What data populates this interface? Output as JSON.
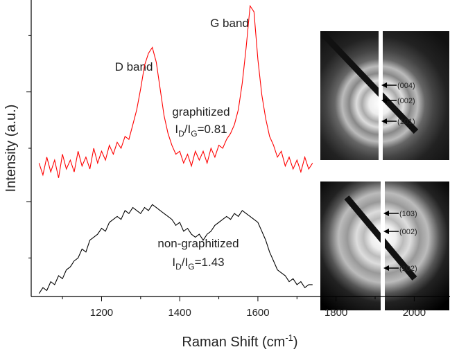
{
  "chart_data": {
    "type": "line",
    "xlabel": [
      "Raman Shift (cm",
      "-1",
      ")"
    ],
    "ylabel": "Intensity (a.u.)",
    "xlim": [
      1020,
      2088
    ],
    "xticks": [
      1200,
      1400,
      1600,
      1800,
      2000
    ],
    "xminor": [
      1100,
      1300,
      1500,
      1700,
      1900
    ],
    "ylim": [
      0,
      10
    ],
    "yticks": [
      3.2,
      6.9
    ],
    "yminor": [
      1.3,
      5.0,
      8.8
    ],
    "ytick_labels": false,
    "x": [
      1040,
      1050,
      1060,
      1070,
      1080,
      1090,
      1100,
      1110,
      1120,
      1130,
      1140,
      1150,
      1160,
      1170,
      1180,
      1190,
      1200,
      1210,
      1220,
      1230,
      1240,
      1250,
      1260,
      1270,
      1280,
      1290,
      1300,
      1310,
      1320,
      1330,
      1340,
      1350,
      1360,
      1370,
      1380,
      1390,
      1400,
      1410,
      1420,
      1430,
      1440,
      1450,
      1460,
      1470,
      1480,
      1490,
      1500,
      1510,
      1520,
      1530,
      1540,
      1550,
      1560,
      1570,
      1580,
      1590,
      1600,
      1610,
      1620,
      1630,
      1640,
      1650,
      1660,
      1670,
      1680,
      1690,
      1700,
      1710,
      1720,
      1730,
      1740
    ],
    "series": [
      {
        "name": "graphitized",
        "color": "#ff0000",
        "values": [
          4.5,
          4.1,
          4.7,
          4.2,
          4.6,
          4.0,
          4.8,
          4.3,
          4.6,
          4.2,
          4.9,
          4.4,
          4.7,
          4.3,
          5.0,
          4.5,
          4.9,
          4.6,
          5.1,
          4.8,
          5.2,
          5.0,
          5.4,
          5.3,
          5.8,
          6.3,
          7.0,
          7.8,
          8.2,
          8.4,
          7.9,
          7.0,
          6.1,
          5.5,
          5.1,
          4.8,
          4.9,
          4.5,
          4.8,
          4.4,
          4.9,
          4.6,
          4.9,
          4.5,
          5.0,
          4.7,
          5.1,
          5.0,
          5.3,
          5.5,
          5.8,
          6.3,
          7.2,
          8.4,
          9.8,
          9.6,
          8.0,
          6.8,
          6.0,
          5.4,
          5.1,
          4.7,
          4.9,
          4.4,
          4.7,
          4.3,
          4.6,
          4.2,
          4.7,
          4.3,
          4.5
        ],
        "ratio": [
          "I",
          "D",
          "/I",
          "G",
          "=0.81"
        ]
      },
      {
        "name": "non-graphitized",
        "color": "#000000",
        "values": [
          0.1,
          0.3,
          0.2,
          0.5,
          0.4,
          0.7,
          0.6,
          0.9,
          1.0,
          1.2,
          1.3,
          1.6,
          1.5,
          1.9,
          2.0,
          2.1,
          2.3,
          2.2,
          2.5,
          2.6,
          2.7,
          2.6,
          2.9,
          2.8,
          3.0,
          2.9,
          2.8,
          3.0,
          2.9,
          3.1,
          3.0,
          2.9,
          2.8,
          2.7,
          2.6,
          2.4,
          2.5,
          2.2,
          2.3,
          2.1,
          2.0,
          2.1,
          1.9,
          2.1,
          2.2,
          2.4,
          2.5,
          2.6,
          2.7,
          2.6,
          2.8,
          2.7,
          2.9,
          2.8,
          2.7,
          2.6,
          2.5,
          2.2,
          1.9,
          1.5,
          1.2,
          0.9,
          0.8,
          0.7,
          0.5,
          0.6,
          0.4,
          0.5,
          0.3,
          0.4,
          0.4
        ],
        "ratio": [
          "I",
          "D",
          "/I",
          "G",
          "=1.43"
        ]
      }
    ],
    "annotations": [
      "D band",
      "G band"
    ],
    "insets": [
      {
        "labels": [
          "(004)",
          "(002)",
          "(101)"
        ]
      },
      {
        "labels": [
          "(103)",
          "(002)",
          "(102)"
        ]
      }
    ]
  }
}
